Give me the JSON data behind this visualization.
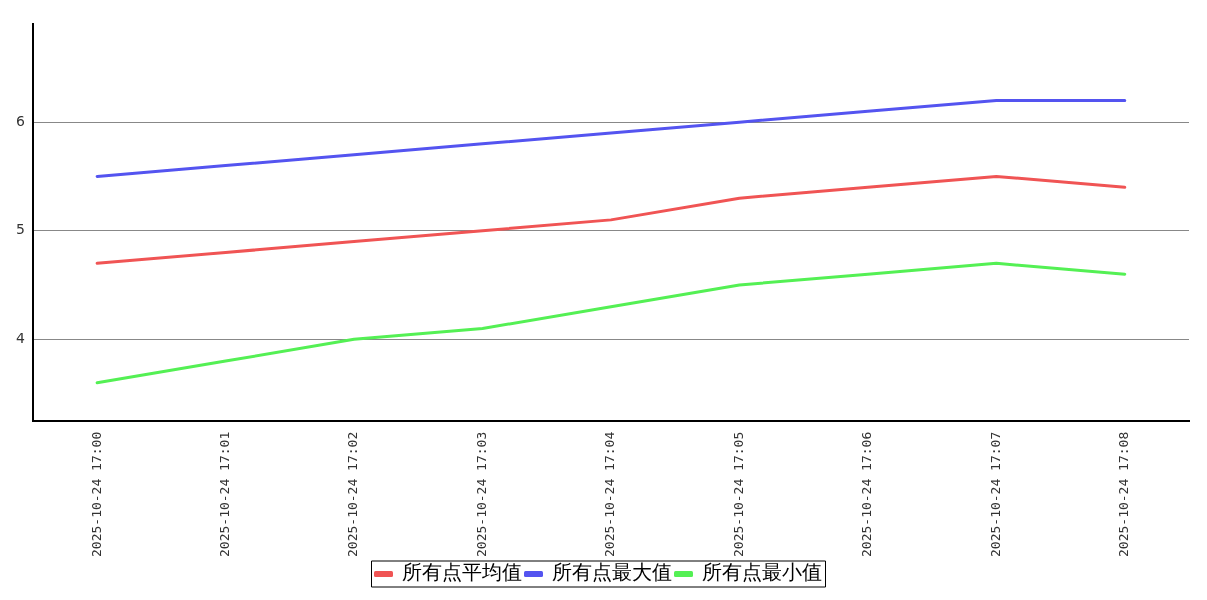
{
  "chart_data": {
    "type": "line",
    "categories": [
      "2025-10-24 17:00",
      "2025-10-24 17:01",
      "2025-10-24 17:02",
      "2025-10-24 17:03",
      "2025-10-24 17:04",
      "2025-10-24 17:05",
      "2025-10-24 17:06",
      "2025-10-24 17:07",
      "2025-10-24 17:08"
    ],
    "series": [
      {
        "name": "所有点平均值",
        "color": "#f05454",
        "values": [
          4.7,
          4.8,
          4.9,
          5.0,
          5.1,
          5.3,
          5.4,
          5.5,
          5.4
        ]
      },
      {
        "name": "所有点最大值",
        "color": "#5454f0",
        "values": [
          5.5,
          5.6,
          5.7,
          5.8,
          5.9,
          6.0,
          6.1,
          6.2,
          6.2
        ]
      },
      {
        "name": "所有点最小值",
        "color": "#54f054",
        "values": [
          3.6,
          3.8,
          4.0,
          4.1,
          4.3,
          4.5,
          4.6,
          4.7,
          4.6
        ]
      }
    ],
    "ylim": [
      3.25,
      6.9
    ],
    "yticks": [
      4,
      5,
      6
    ],
    "grid": "y",
    "legend": "bottom",
    "marker": "none",
    "line_style": "solid"
  }
}
